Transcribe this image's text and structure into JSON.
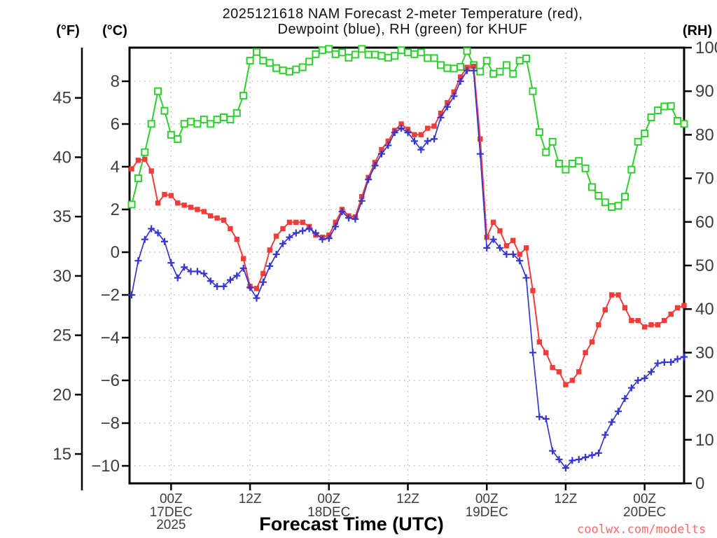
{
  "header": {
    "title_line1": "2025121618 NAM Forecast 2-meter Temperature (red),",
    "title_line2": "Dewpoint (blue), RH (green) for KHUF"
  },
  "footer": {
    "x_axis_label": "Forecast Time (UTC)",
    "watermark": "coolwx.com/modelts"
  },
  "axis_headers": {
    "fahrenheit": "(°F)",
    "celsius": "(°C)",
    "rh": "(RH)"
  },
  "colors": {
    "temperature": "#f23b3b",
    "dewpoint": "#3535d0",
    "rh": "#2ed02e",
    "watermark": "#f96a6a",
    "grid": "#b0b0b0",
    "tick_text": "#3d3d3d",
    "frame": "#000000",
    "title_text": "#111111"
  },
  "chart_data": {
    "type": "line",
    "title": "2025121618 NAM Forecast 2-meter Temperature (red), Dewpoint (blue), RH (green) for KHUF",
    "station": "KHUF",
    "model_run": "2025121618 NAM",
    "x": {
      "label": "Forecast Time (UTC)",
      "unit": "forecast hours after 2025-12-16 18Z",
      "forecast_hours": [
        0,
        1,
        2,
        3,
        4,
        5,
        6,
        7,
        8,
        9,
        10,
        11,
        12,
        13,
        14,
        15,
        16,
        17,
        18,
        19,
        20,
        21,
        22,
        23,
        24,
        25,
        26,
        27,
        28,
        29,
        30,
        31,
        32,
        33,
        34,
        35,
        36,
        37,
        38,
        39,
        40,
        41,
        42,
        43,
        44,
        45,
        46,
        47,
        48,
        49,
        50,
        51,
        52,
        53,
        54,
        55,
        56,
        57,
        58,
        59,
        60,
        61,
        62,
        63,
        64,
        65,
        66,
        67,
        68,
        69,
        70,
        71,
        72,
        73,
        74,
        75,
        76,
        77,
        78,
        79,
        80,
        81,
        82,
        83,
        84
      ]
    },
    "x_ticks": [
      {
        "hour": 6,
        "time": "00Z",
        "date": "17DEC",
        "year": "2025"
      },
      {
        "hour": 18,
        "time": "12Z"
      },
      {
        "hour": 30,
        "time": "00Z",
        "date": "18DEC"
      },
      {
        "hour": 42,
        "time": "12Z"
      },
      {
        "hour": 54,
        "time": "00Z",
        "date": "19DEC"
      },
      {
        "hour": 66,
        "time": "12Z"
      },
      {
        "hour": 78,
        "time": "00Z",
        "date": "20DEC"
      }
    ],
    "y_left_celsius": {
      "header": "(°C)",
      "ticks": [
        8,
        6,
        4,
        2,
        0,
        -2,
        -4,
        -6,
        -8,
        -10
      ],
      "min": -10.8,
      "max": 9.6,
      "grid": true
    },
    "y_left_fahrenheit": {
      "header": "(°F)",
      "ticks": [
        45,
        40,
        35,
        30,
        25,
        20,
        15
      ]
    },
    "y_right_rh": {
      "header": "(RH)",
      "ticks": [
        100,
        90,
        80,
        70,
        60,
        50,
        40,
        30,
        20,
        10,
        0
      ],
      "min": 0,
      "max": 100
    },
    "legend_position": "in-title",
    "series": [
      {
        "id": "rh",
        "name": "RH (green)",
        "axis": "rh",
        "marker": "open-square",
        "color_key": "rh",
        "values": [
          64,
          70,
          76,
          82.5,
          90,
          85.5,
          80,
          79,
          82.5,
          83,
          82.5,
          83.5,
          82.5,
          83.5,
          84,
          83.5,
          85,
          89,
          97,
          99,
          97,
          96.5,
          95.3,
          94.8,
          94.5,
          95,
          95.5,
          96.8,
          98.5,
          99.4,
          99.7,
          98.5,
          98.9,
          97.7,
          98.4,
          99.7,
          98.4,
          98.4,
          98.1,
          97.7,
          98.1,
          99.4,
          98.9,
          98.5,
          98.9,
          97.6,
          97.6,
          96,
          95.3,
          95.2,
          95.6,
          99.2,
          96,
          94.5,
          97,
          94,
          94.5,
          96,
          94,
          97,
          97.5,
          90,
          80.6,
          76,
          78.4,
          73.4,
          72,
          73.4,
          74,
          72.3,
          68,
          66,
          64.5,
          63.4,
          63.7,
          65.8,
          72,
          78.4,
          80.3,
          84,
          85.6,
          86.5,
          86.6,
          83.2,
          82.5
        ]
      },
      {
        "id": "temperature",
        "name": "2-meter Temperature (red)",
        "axis": "celsius",
        "marker": "filled-square",
        "color_key": "temperature",
        "values": [
          3.9,
          4.3,
          4.35,
          3.8,
          2.3,
          2.7,
          2.65,
          2.3,
          2.2,
          2.1,
          2.0,
          1.9,
          1.7,
          1.6,
          1.5,
          1.1,
          0.6,
          -0.3,
          -1.6,
          -1.7,
          -1.0,
          0.1,
          0.75,
          1.1,
          1.4,
          1.4,
          1.4,
          1.2,
          0.8,
          0.7,
          0.8,
          1.4,
          2.0,
          1.7,
          1.65,
          2.6,
          3.5,
          4.2,
          4.8,
          5.2,
          5.7,
          6.0,
          5.75,
          5.5,
          5.5,
          5.8,
          5.9,
          6.5,
          7.0,
          7.5,
          8.2,
          8.65,
          8.7,
          5.3,
          0.7,
          1.4,
          1.0,
          0.3,
          0.55,
          -0.1,
          0.2,
          -1.8,
          -4.2,
          -4.7,
          -5.4,
          -5.6,
          -6.2,
          -6.0,
          -5.6,
          -4.7,
          -4.2,
          -3.4,
          -2.7,
          -2.0,
          -2.0,
          -2.6,
          -3.2,
          -3.2,
          -3.5,
          -3.4,
          -3.4,
          -3.2,
          -2.9,
          -2.6,
          -2.5
        ]
      },
      {
        "id": "dewpoint",
        "name": "Dewpoint (blue)",
        "axis": "celsius",
        "marker": "plus",
        "color_key": "dewpoint",
        "values": [
          -2.0,
          -0.4,
          0.6,
          1.1,
          0.9,
          0.5,
          -0.5,
          -1.2,
          -0.7,
          -0.9,
          -0.9,
          -1.0,
          -1.35,
          -1.6,
          -1.6,
          -1.3,
          -1.1,
          -0.75,
          -1.65,
          -2.15,
          -1.4,
          -0.65,
          -0.1,
          0.4,
          0.7,
          0.9,
          1.0,
          1.1,
          0.9,
          0.6,
          0.65,
          1.2,
          1.9,
          1.6,
          1.55,
          2.4,
          3.4,
          4.05,
          4.6,
          5.0,
          5.6,
          5.8,
          5.6,
          5.2,
          4.8,
          5.2,
          5.3,
          6.3,
          6.8,
          7.3,
          8.0,
          8.5,
          8.5,
          4.6,
          0.2,
          0.6,
          0.2,
          -0.1,
          -0.1,
          -0.4,
          -1.2,
          -4.7,
          -7.7,
          -7.8,
          -9.3,
          -9.7,
          -10.1,
          -9.75,
          -9.7,
          -9.6,
          -9.5,
          -9.4,
          -8.55,
          -7.95,
          -7.45,
          -6.85,
          -6.35,
          -6.0,
          -5.9,
          -5.6,
          -5.2,
          -5.15,
          -5.15,
          -5.0,
          -4.9
        ]
      }
    ]
  }
}
